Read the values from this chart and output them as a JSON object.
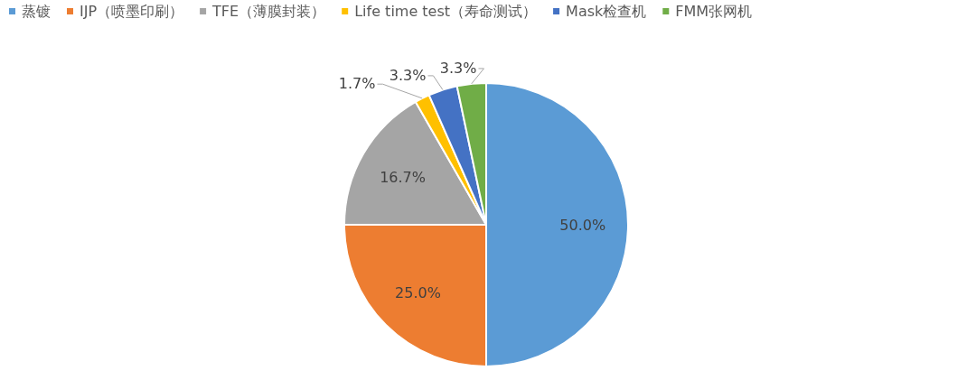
{
  "chart_data": {
    "type": "pie",
    "legend": "top",
    "categories": [
      "蒸镀",
      "IJP（喷墨印刷）",
      "TFE（薄膜封装）",
      "Life time test（寿命测试）",
      "Mask检查机",
      "FMM张网机"
    ],
    "values": [
      50,
      25,
      16.7,
      1.7,
      3.3,
      3.3
    ],
    "colors": [
      "#5b9bd5",
      "#ed7d31",
      "#a5a5a5",
      "#ffc000",
      "#4472c4",
      "#70ad47"
    ],
    "value_labels": [
      "50.0%",
      "25.0%",
      "16.7%",
      "1.7%",
      "3.3%",
      "3.3%"
    ]
  }
}
